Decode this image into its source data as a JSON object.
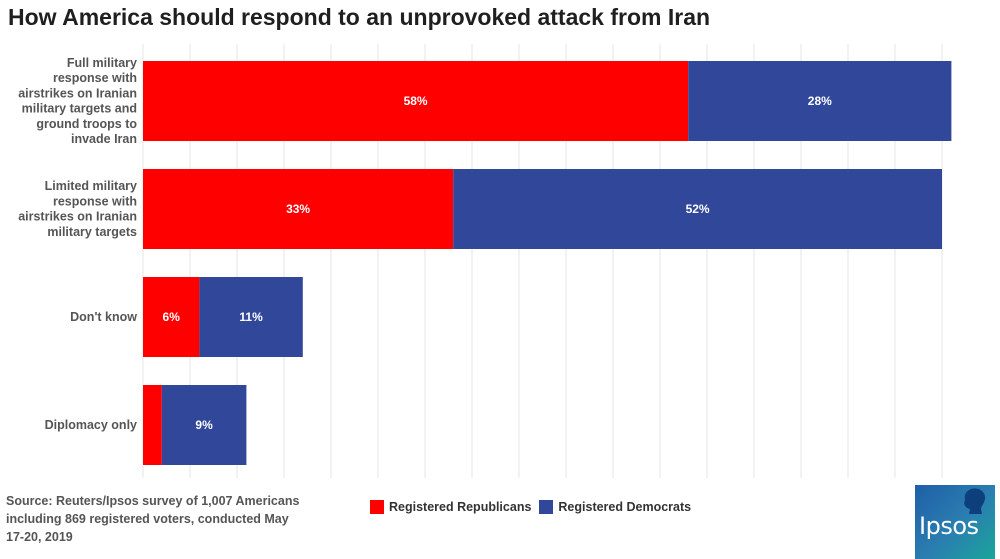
{
  "chart_data": {
    "type": "bar",
    "orientation": "horizontal",
    "stacked": true,
    "title": "How America should respond to an unprovoked attack from Iran",
    "categories": [
      "Full military response with airstrikes on Iranian military targets and ground troops to invade Iran",
      "Limited military response with airstrikes on Iranian military targets",
      "Don't know",
      "Diplomacy only"
    ],
    "category_lines": [
      [
        "Full military",
        "response with",
        "airstrikes on Iranian",
        "military targets and",
        "ground troops to",
        "invade Iran"
      ],
      [
        "Limited military",
        "response with",
        "airstrikes on Iranian",
        "military targets"
      ],
      [
        "Don't know"
      ],
      [
        "Diplomacy only"
      ]
    ],
    "series": [
      {
        "name": "Registered Republicans",
        "color": "#ff0000",
        "values": [
          58,
          33,
          6,
          2
        ],
        "labels": [
          "58%",
          "33%",
          "6%",
          ""
        ]
      },
      {
        "name": "Registered Democrats",
        "color": "#30479a",
        "values": [
          28,
          52,
          11,
          9
        ],
        "labels": [
          "28%",
          "52%",
          "11%",
          "9%"
        ]
      }
    ],
    "xlim": [
      0,
      87
    ],
    "grid": true,
    "legend_position": "bottom"
  },
  "source": {
    "lines": [
      "Source: Reuters/Ipsos survey of 1,007 Americans",
      "including 869 registered voters, conducted May",
      "17-20, 2019"
    ]
  },
  "logo": {
    "text": "Ipsos"
  }
}
